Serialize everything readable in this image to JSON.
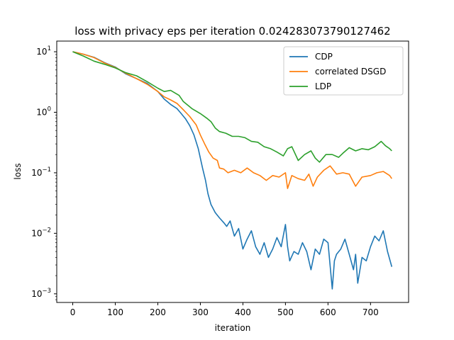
{
  "chart_data": {
    "type": "line",
    "title": "loss with privacy eps per iteration 0.024283073790127462",
    "xlabel": "iteration",
    "ylabel": "loss",
    "yscale": "log",
    "xlim": [
      -37.6,
      789.5
    ],
    "ylim": [
      0.00072,
      15.0
    ],
    "xticks": [
      0,
      100,
      200,
      300,
      400,
      500,
      600,
      700
    ],
    "xtick_labels": [
      "0",
      "100",
      "200",
      "300",
      "400",
      "500",
      "600",
      "700"
    ],
    "yticks": [
      0.001,
      0.01,
      0.1,
      1,
      10
    ],
    "ytick_labels": [
      {
        "base": "10",
        "exp": "−3"
      },
      {
        "base": "10",
        "exp": "−2"
      },
      {
        "base": "10",
        "exp": "−1"
      },
      {
        "base": "10",
        "exp": "0"
      },
      {
        "base": "10",
        "exp": "1"
      }
    ],
    "legend_position": "top-right",
    "grid": false,
    "series": [
      {
        "name": "CDP",
        "color": "#1f77b4",
        "points": [
          [
            0,
            10
          ],
          [
            25,
            9.1
          ],
          [
            50,
            8.1
          ],
          [
            75,
            6.6
          ],
          [
            100,
            5.6
          ],
          [
            125,
            4.3
          ],
          [
            150,
            3.6
          ],
          [
            175,
            3.0
          ],
          [
            200,
            2.2
          ],
          [
            215,
            1.65
          ],
          [
            230,
            1.35
          ],
          [
            245,
            1.15
          ],
          [
            255,
            0.95
          ],
          [
            265,
            0.78
          ],
          [
            275,
            0.6
          ],
          [
            285,
            0.42
          ],
          [
            295,
            0.25
          ],
          [
            305,
            0.12
          ],
          [
            312,
            0.075
          ],
          [
            318,
            0.045
          ],
          [
            325,
            0.03
          ],
          [
            335,
            0.022
          ],
          [
            345,
            0.018
          ],
          [
            355,
            0.015
          ],
          [
            362,
            0.013
          ],
          [
            370,
            0.016
          ],
          [
            380,
            0.009
          ],
          [
            390,
            0.012
          ],
          [
            400,
            0.0055
          ],
          [
            410,
            0.008
          ],
          [
            420,
            0.011
          ],
          [
            430,
            0.006
          ],
          [
            440,
            0.0045
          ],
          [
            450,
            0.007
          ],
          [
            460,
            0.004
          ],
          [
            470,
            0.0055
          ],
          [
            480,
            0.0085
          ],
          [
            490,
            0.006
          ],
          [
            500,
            0.014
          ],
          [
            505,
            0.006
          ],
          [
            510,
            0.0035
          ],
          [
            520,
            0.005
          ],
          [
            530,
            0.0045
          ],
          [
            540,
            0.007
          ],
          [
            550,
            0.005
          ],
          [
            560,
            0.0025
          ],
          [
            570,
            0.0055
          ],
          [
            580,
            0.0045
          ],
          [
            590,
            0.008
          ],
          [
            600,
            0.007
          ],
          [
            610,
            0.0012
          ],
          [
            615,
            0.0035
          ],
          [
            620,
            0.0045
          ],
          [
            630,
            0.0055
          ],
          [
            640,
            0.008
          ],
          [
            650,
            0.0045
          ],
          [
            660,
            0.0025
          ],
          [
            665,
            0.0045
          ],
          [
            670,
            0.0015
          ],
          [
            680,
            0.004
          ],
          [
            690,
            0.0035
          ],
          [
            700,
            0.006
          ],
          [
            710,
            0.009
          ],
          [
            720,
            0.0075
          ],
          [
            730,
            0.011
          ],
          [
            740,
            0.005
          ],
          [
            750,
            0.0028
          ]
        ]
      },
      {
        "name": "correlated DSGD",
        "color": "#ff7f0e",
        "points": [
          [
            0,
            10
          ],
          [
            25,
            9.1
          ],
          [
            50,
            8.0
          ],
          [
            75,
            6.5
          ],
          [
            100,
            5.5
          ],
          [
            125,
            4.4
          ],
          [
            150,
            3.6
          ],
          [
            175,
            2.9
          ],
          [
            200,
            2.2
          ],
          [
            215,
            1.8
          ],
          [
            230,
            1.6
          ],
          [
            245,
            1.4
          ],
          [
            260,
            1.1
          ],
          [
            275,
            0.85
          ],
          [
            290,
            0.62
          ],
          [
            300,
            0.42
          ],
          [
            310,
            0.3
          ],
          [
            320,
            0.22
          ],
          [
            330,
            0.175
          ],
          [
            340,
            0.16
          ],
          [
            345,
            0.12
          ],
          [
            355,
            0.115
          ],
          [
            365,
            0.1
          ],
          [
            380,
            0.11
          ],
          [
            395,
            0.1
          ],
          [
            410,
            0.12
          ],
          [
            425,
            0.1
          ],
          [
            440,
            0.09
          ],
          [
            455,
            0.075
          ],
          [
            470,
            0.09
          ],
          [
            485,
            0.085
          ],
          [
            500,
            0.1
          ],
          [
            505,
            0.055
          ],
          [
            515,
            0.09
          ],
          [
            530,
            0.08
          ],
          [
            545,
            0.075
          ],
          [
            555,
            0.095
          ],
          [
            565,
            0.06
          ],
          [
            575,
            0.085
          ],
          [
            590,
            0.11
          ],
          [
            605,
            0.13
          ],
          [
            620,
            0.095
          ],
          [
            635,
            0.1
          ],
          [
            650,
            0.095
          ],
          [
            665,
            0.06
          ],
          [
            680,
            0.085
          ],
          [
            700,
            0.09
          ],
          [
            715,
            0.1
          ],
          [
            730,
            0.105
          ],
          [
            745,
            0.09
          ],
          [
            750,
            0.08
          ]
        ]
      },
      {
        "name": "LDP",
        "color": "#2ca02c",
        "points": [
          [
            0,
            10
          ],
          [
            25,
            8.5
          ],
          [
            50,
            7.0
          ],
          [
            75,
            6.2
          ],
          [
            100,
            5.4
          ],
          [
            125,
            4.5
          ],
          [
            150,
            4.0
          ],
          [
            175,
            3.2
          ],
          [
            200,
            2.5
          ],
          [
            215,
            2.2
          ],
          [
            230,
            2.3
          ],
          [
            250,
            1.9
          ],
          [
            260,
            1.5
          ],
          [
            280,
            1.15
          ],
          [
            300,
            0.95
          ],
          [
            315,
            0.8
          ],
          [
            325,
            0.7
          ],
          [
            335,
            0.55
          ],
          [
            345,
            0.48
          ],
          [
            360,
            0.45
          ],
          [
            375,
            0.4
          ],
          [
            390,
            0.4
          ],
          [
            405,
            0.38
          ],
          [
            420,
            0.33
          ],
          [
            435,
            0.32
          ],
          [
            450,
            0.27
          ],
          [
            465,
            0.25
          ],
          [
            480,
            0.22
          ],
          [
            495,
            0.19
          ],
          [
            505,
            0.25
          ],
          [
            515,
            0.27
          ],
          [
            530,
            0.16
          ],
          [
            545,
            0.2
          ],
          [
            560,
            0.23
          ],
          [
            570,
            0.175
          ],
          [
            580,
            0.15
          ],
          [
            595,
            0.2
          ],
          [
            610,
            0.2
          ],
          [
            625,
            0.18
          ],
          [
            635,
            0.21
          ],
          [
            650,
            0.26
          ],
          [
            665,
            0.23
          ],
          [
            680,
            0.25
          ],
          [
            695,
            0.24
          ],
          [
            710,
            0.27
          ],
          [
            725,
            0.33
          ],
          [
            735,
            0.28
          ],
          [
            745,
            0.25
          ],
          [
            750,
            0.23
          ]
        ]
      }
    ]
  }
}
